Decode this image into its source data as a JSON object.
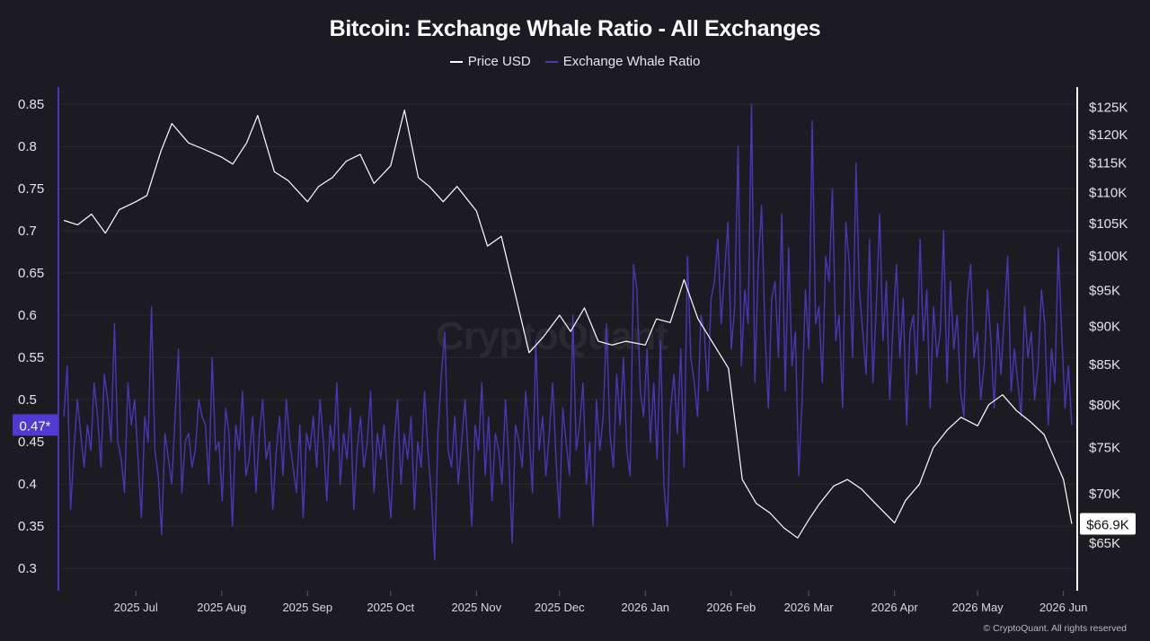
{
  "page": {
    "watermark": "CryptoQuant",
    "copyright": "© CryptoQuant. All rights reserved"
  },
  "colors": {
    "background": "#1c1b22",
    "price": "#ffffff",
    "ratio": "#4b35b8",
    "ratio_badge": "#4f3ad6",
    "grid": "#2a2930"
  },
  "chart_data": {
    "type": "line",
    "title": "Bitcoin: Exchange Whale Ratio - All Exchanges",
    "legend": [
      "Price USD",
      "Exchange Whale Ratio"
    ],
    "legend_position": "top-center",
    "grid": true,
    "x_ticks": [
      "2025 Jul",
      "2025 Aug",
      "2025 Sep",
      "2025 Oct",
      "2025 Nov",
      "2025 Dec",
      "2026 Jan",
      "2026 Feb",
      "2026 Mar",
      "2026 Apr",
      "2026 May",
      "2026 Jun"
    ],
    "x_range": [
      "2025-06-04",
      "2026-06-05"
    ],
    "y_left": {
      "label": "",
      "ticks": [
        "0.85",
        "0.8",
        "0.75",
        "0.7",
        "0.65",
        "0.6",
        "0.55",
        "0.5",
        "0.45",
        "0.4",
        "0.35",
        "0.3"
      ],
      "range": [
        0.28,
        0.865
      ],
      "current_badge": "0.47*"
    },
    "y_right": {
      "label": "",
      "scale": "log",
      "ticks": [
        "$125K",
        "$120K",
        "$115K",
        "$110K",
        "$105K",
        "$100K",
        "$95K",
        "$90K",
        "$85K",
        "$80K",
        "$75K",
        "$70K",
        "$65K"
      ],
      "range_usd": [
        61000,
        128000
      ],
      "current_badge": "$66.9K"
    },
    "series": [
      {
        "name": "Price USD",
        "axis": "right",
        "x": [
          "2025-06-05",
          "2025-06-10",
          "2025-06-15",
          "2025-06-20",
          "2025-06-25",
          "2025-07-01",
          "2025-07-05",
          "2025-07-10",
          "2025-07-14",
          "2025-07-20",
          "2025-07-25",
          "2025-08-01",
          "2025-08-05",
          "2025-08-10",
          "2025-08-14",
          "2025-08-20",
          "2025-08-25",
          "2025-09-01",
          "2025-09-05",
          "2025-09-10",
          "2025-09-15",
          "2025-09-20",
          "2025-09-25",
          "2025-10-01",
          "2025-10-06",
          "2025-10-11",
          "2025-10-15",
          "2025-10-20",
          "2025-10-25",
          "2025-11-01",
          "2025-11-05",
          "2025-11-10",
          "2025-11-15",
          "2025-11-20",
          "2025-11-25",
          "2025-12-01",
          "2025-12-05",
          "2025-12-10",
          "2025-12-15",
          "2025-12-20",
          "2025-12-25",
          "2026-01-01",
          "2026-01-05",
          "2026-01-10",
          "2026-01-15",
          "2026-01-20",
          "2026-01-25",
          "2026-01-31",
          "2026-02-05",
          "2026-02-10",
          "2026-02-15",
          "2026-02-20",
          "2026-02-25",
          "2026-03-01",
          "2026-03-05",
          "2026-03-10",
          "2026-03-15",
          "2026-03-20",
          "2026-03-25",
          "2026-04-01",
          "2026-04-05",
          "2026-04-10",
          "2026-04-15",
          "2026-04-20",
          "2026-04-25",
          "2026-05-01",
          "2026-05-05",
          "2026-05-10",
          "2026-05-15",
          "2026-05-20",
          "2026-05-25",
          "2026-06-01",
          "2026-06-04"
        ],
        "values": [
          105500,
          104800,
          106500,
          103500,
          107200,
          108500,
          109500,
          117000,
          122000,
          118500,
          117500,
          116000,
          114800,
          118500,
          123500,
          113500,
          112000,
          108500,
          111000,
          112500,
          115300,
          116500,
          111500,
          114500,
          124500,
          112500,
          111000,
          108500,
          111000,
          107000,
          101500,
          103000,
          94500,
          86500,
          88500,
          91500,
          89300,
          92500,
          88000,
          87500,
          88000,
          87500,
          91000,
          90500,
          96500,
          91000,
          88000,
          84500,
          71500,
          69000,
          68000,
          66500,
          65500,
          67300,
          69000,
          70800,
          71500,
          70500,
          69000,
          67000,
          69300,
          71000,
          75000,
          77000,
          78500,
          77500,
          80000,
          81200,
          79300,
          78000,
          76500,
          71500,
          66900
        ]
      },
      {
        "name": "Exchange Whale Ratio",
        "axis": "left",
        "x_range": [
          "2025-06-05",
          "2026-06-04"
        ],
        "values": [
          0.48,
          0.54,
          0.37,
          0.44,
          0.5,
          0.46,
          0.42,
          0.47,
          0.44,
          0.52,
          0.48,
          0.42,
          0.53,
          0.5,
          0.45,
          0.59,
          0.45,
          0.43,
          0.39,
          0.52,
          0.47,
          0.5,
          0.43,
          0.36,
          0.48,
          0.45,
          0.61,
          0.44,
          0.41,
          0.34,
          0.46,
          0.43,
          0.4,
          0.48,
          0.56,
          0.39,
          0.45,
          0.46,
          0.42,
          0.44,
          0.5,
          0.48,
          0.47,
          0.4,
          0.55,
          0.44,
          0.45,
          0.38,
          0.49,
          0.46,
          0.35,
          0.47,
          0.44,
          0.51,
          0.41,
          0.43,
          0.48,
          0.39,
          0.46,
          0.5,
          0.43,
          0.45,
          0.37,
          0.44,
          0.48,
          0.41,
          0.5,
          0.45,
          0.42,
          0.39,
          0.47,
          0.36,
          0.46,
          0.44,
          0.48,
          0.42,
          0.5,
          0.45,
          0.38,
          0.47,
          0.44,
          0.52,
          0.4,
          0.46,
          0.43,
          0.49,
          0.37,
          0.44,
          0.48,
          0.42,
          0.45,
          0.51,
          0.39,
          0.46,
          0.43,
          0.47,
          0.41,
          0.36,
          0.45,
          0.5,
          0.4,
          0.46,
          0.43,
          0.48,
          0.37,
          0.45,
          0.42,
          0.51,
          0.44,
          0.39,
          0.31,
          0.46,
          0.53,
          0.58,
          0.44,
          0.42,
          0.48,
          0.4,
          0.45,
          0.5,
          0.43,
          0.35,
          0.47,
          0.44,
          0.52,
          0.41,
          0.48,
          0.38,
          0.46,
          0.44,
          0.4,
          0.5,
          0.43,
          0.33,
          0.47,
          0.45,
          0.42,
          0.51,
          0.46,
          0.39,
          0.57,
          0.44,
          0.48,
          0.41,
          0.46,
          0.52,
          0.43,
          0.36,
          0.49,
          0.45,
          0.41,
          0.6,
          0.44,
          0.47,
          0.52,
          0.4,
          0.45,
          0.35,
          0.5,
          0.44,
          0.48,
          0.59,
          0.46,
          0.42,
          0.53,
          0.47,
          0.55,
          0.44,
          0.41,
          0.66,
          0.63,
          0.51,
          0.48,
          0.56,
          0.45,
          0.52,
          0.43,
          0.57,
          0.4,
          0.35,
          0.49,
          0.53,
          0.46,
          0.56,
          0.42,
          0.67,
          0.55,
          0.52,
          0.48,
          0.6,
          0.58,
          0.51,
          0.62,
          0.64,
          0.69,
          0.59,
          0.65,
          0.71,
          0.56,
          0.61,
          0.8,
          0.54,
          0.63,
          0.59,
          0.85,
          0.52,
          0.66,
          0.73,
          0.58,
          0.49,
          0.62,
          0.64,
          0.55,
          0.72,
          0.51,
          0.68,
          0.54,
          0.58,
          0.41,
          0.5,
          0.63,
          0.56,
          0.83,
          0.59,
          0.61,
          0.52,
          0.67,
          0.64,
          0.75,
          0.57,
          0.6,
          0.49,
          0.71,
          0.66,
          0.55,
          0.78,
          0.63,
          0.58,
          0.53,
          0.69,
          0.52,
          0.61,
          0.72,
          0.57,
          0.64,
          0.5,
          0.59,
          0.66,
          0.55,
          0.62,
          0.47,
          0.58,
          0.6,
          0.53,
          0.69,
          0.57,
          0.63,
          0.49,
          0.61,
          0.55,
          0.58,
          0.7,
          0.52,
          0.64,
          0.56,
          0.6,
          0.51,
          0.48,
          0.62,
          0.66,
          0.55,
          0.58,
          0.5,
          0.54,
          0.63,
          0.57,
          0.49,
          0.59,
          0.53,
          0.6,
          0.67,
          0.51,
          0.56,
          0.52,
          0.48,
          0.61,
          0.55,
          0.58,
          0.5,
          0.54,
          0.63,
          0.59,
          0.47,
          0.56,
          0.52,
          0.68,
          0.58,
          0.49,
          0.54,
          0.47
        ]
      }
    ],
    "annotations": [
      "0.47*",
      "$66.9K"
    ]
  }
}
